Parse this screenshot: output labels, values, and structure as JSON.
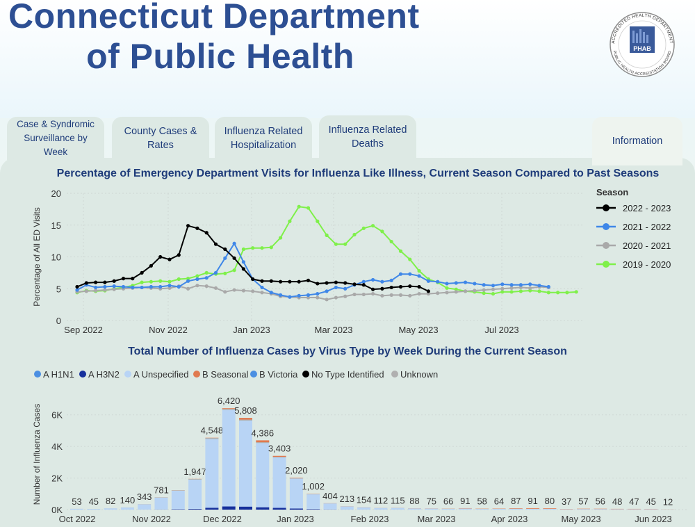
{
  "header": {
    "title_line1": "Connecticut Department",
    "title_line2": "of Public Health",
    "seal_text_top": "ACCREDITED HEALTH DEPARTMENT",
    "seal_text_bottom": "PUBLIC HEALTH ACCREDITATION BOARD",
    "seal_logo": "PHAB"
  },
  "tabs": [
    {
      "label": "Case & Syndromic Surveillance by Week"
    },
    {
      "label": "County Cases & Rates"
    },
    {
      "label": "Influenza Related Hospitalization"
    },
    {
      "label": "Influenza Related Deaths"
    },
    {
      "label": "Information"
    }
  ],
  "colors": {
    "title": "#2d4f93",
    "s2022": "#000000",
    "s2021": "#3f87e8",
    "s2020": "#a9a9a9",
    "s2019": "#7ff04a",
    "a_h1n1": "#4b8fe2",
    "a_h3n2": "#16309c",
    "a_unspec": "#b8d4f5",
    "b_seasonal": "#e07a50",
    "b_victoria": "#4b8fe2",
    "no_type": "#000000",
    "unknown": "#b0b0b0"
  },
  "chart_data": [
    {
      "type": "line",
      "title": "Percentage of Emergency Department Visits for Influenza Like Illness, Current Season Compared to Past Seasons",
      "ylabel": "Percentage of All ED Visits",
      "ylim": [
        0,
        20
      ],
      "yticks": [
        "0",
        "5",
        "10",
        "15",
        "20"
      ],
      "xticks": [
        "Sep 2022",
        "Nov 2022",
        "Jan 2023",
        "Mar 2023",
        "May 2023",
        "Jul 2023"
      ],
      "legend_title": "Season",
      "series": [
        {
          "name": "2022 - 2023",
          "color": "#000000",
          "values": [
            5.3,
            5.9,
            6.0,
            6.0,
            6.2,
            6.6,
            6.6,
            7.5,
            8.6,
            10.0,
            9.6,
            10.3,
            14.9,
            14.5,
            13.8,
            12.0,
            11.2,
            9.8,
            8.1,
            6.5,
            6.2,
            6.2,
            6.1,
            6.1,
            6.1,
            6.3,
            5.8,
            5.9,
            6.0,
            5.9,
            5.7,
            5.6,
            4.9,
            5.0,
            5.2,
            5.3,
            5.4,
            5.3,
            4.6
          ]
        },
        {
          "name": "2021 - 2022",
          "color": "#3f87e8",
          "values": [
            4.8,
            5.6,
            5.2,
            5.3,
            5.4,
            5.3,
            5.2,
            5.2,
            5.3,
            5.3,
            5.5,
            5.3,
            6.2,
            6.5,
            6.7,
            7.5,
            9.8,
            12.1,
            9.2,
            6.5,
            5.2,
            4.4,
            4.0,
            3.7,
            3.9,
            4.0,
            4.2,
            4.6,
            5.2,
            5.0,
            5.6,
            6.1,
            6.4,
            6.1,
            6.3,
            7.3,
            7.3,
            7.0,
            6.2,
            6.1,
            5.8,
            5.9,
            6.0,
            5.8,
            5.6,
            5.5,
            5.7,
            5.6,
            5.6,
            5.7,
            5.5,
            5.3
          ]
        },
        {
          "name": "2020 - 2021",
          "color": "#a9a9a9",
          "values": [
            4.5,
            4.6,
            4.7,
            4.8,
            4.9,
            5.0,
            5.1,
            5.2,
            5.1,
            5.0,
            5.1,
            5.4,
            5.0,
            5.5,
            5.4,
            5.1,
            4.5,
            4.8,
            4.7,
            4.6,
            4.4,
            4.2,
            3.8,
            3.7,
            3.6,
            3.6,
            3.6,
            3.3,
            3.6,
            3.8,
            4.1,
            4.1,
            4.2,
            3.9,
            4.0,
            4.0,
            3.9,
            4.2,
            4.2,
            4.3,
            4.4,
            4.5,
            4.6,
            4.7,
            4.8,
            4.9,
            5.0,
            5.1,
            5.2,
            5.1,
            5.3,
            5.2
          ]
        },
        {
          "name": "2019 - 2020",
          "color": "#7ff04a",
          "values": [
            4.4,
            4.7,
            4.6,
            4.7,
            5.0,
            5.2,
            5.5,
            6.0,
            6.1,
            6.2,
            6.1,
            6.5,
            6.6,
            7.0,
            7.5,
            7.3,
            7.4,
            7.9,
            11.2,
            11.4,
            11.4,
            11.5,
            13.0,
            15.6,
            17.9,
            17.7,
            15.6,
            13.4,
            12.0,
            12.0,
            13.5,
            14.5,
            14.9,
            14.0,
            12.4,
            10.9,
            9.6,
            7.8,
            6.5,
            6.0,
            5.1,
            4.9,
            4.6,
            4.5,
            4.3,
            4.2,
            4.5,
            4.5,
            4.6,
            4.7,
            4.6,
            4.4,
            4.4,
            4.4,
            4.5
          ]
        }
      ]
    },
    {
      "type": "bar",
      "stacked": true,
      "title": "Total Number of Influenza Cases by Virus Type by Week During the Current Season",
      "ylabel": "Number of Influenza Cases",
      "ylim": [
        0,
        7000
      ],
      "yticks": [
        "0K",
        "2K",
        "4K",
        "6K"
      ],
      "xticks": [
        "Oct 2022",
        "Nov 2022",
        "Dec 2022",
        "Jan 2023",
        "Feb 2023",
        "Mar 2023",
        "Apr 2023",
        "May 2023",
        "Jun 2023"
      ],
      "legend": [
        "A H1N1",
        "A H3N2",
        "A Unspecified",
        "B Seasonal",
        "B Victoria",
        "No Type Identified",
        "Unknown"
      ],
      "totals": [
        53,
        45,
        82,
        140,
        343,
        781,
        1227,
        1947,
        4548,
        6420,
        5808,
        4386,
        3403,
        2020,
        1002,
        404,
        213,
        154,
        112,
        115,
        88,
        75,
        66,
        91,
        58,
        64,
        87,
        91,
        80,
        37,
        57,
        56,
        48,
        47,
        45,
        12
      ],
      "total_labels": [
        "53",
        "45",
        "82",
        "140",
        "343",
        "781",
        "",
        "1,947",
        "4,548",
        "6,420",
        "5,808",
        "4,386",
        "3,403",
        "2,020",
        "1,002",
        "404",
        "213",
        "154",
        "112",
        "115",
        "88",
        "75",
        "66",
        "91",
        "58",
        "64",
        "87",
        "91",
        "80",
        "37",
        "57",
        "56",
        "48",
        "47",
        "45",
        "12"
      ],
      "h3n2": [
        0,
        0,
        0,
        1,
        3,
        8,
        20,
        40,
        120,
        200,
        190,
        150,
        110,
        70,
        30,
        10,
        4,
        3,
        2,
        2,
        1,
        1,
        1,
        1,
        1,
        1,
        1,
        1,
        1,
        0,
        1,
        1,
        0,
        0,
        0,
        0
      ],
      "b_seasonal": [
        0,
        0,
        0,
        0,
        1,
        2,
        4,
        8,
        15,
        40,
        110,
        120,
        60,
        30,
        15,
        8,
        6,
        5,
        5,
        6,
        8,
        8,
        10,
        20,
        15,
        18,
        30,
        40,
        35,
        15,
        20,
        20,
        18,
        18,
        15,
        5
      ],
      "unknown": [
        2,
        2,
        3,
        5,
        10,
        20,
        30,
        40,
        60,
        70,
        60,
        50,
        40,
        25,
        15,
        8,
        5,
        4,
        3,
        3,
        2,
        2,
        2,
        3,
        2,
        2,
        2,
        3,
        2,
        1,
        2,
        2,
        2,
        2,
        2,
        1
      ]
    }
  ]
}
